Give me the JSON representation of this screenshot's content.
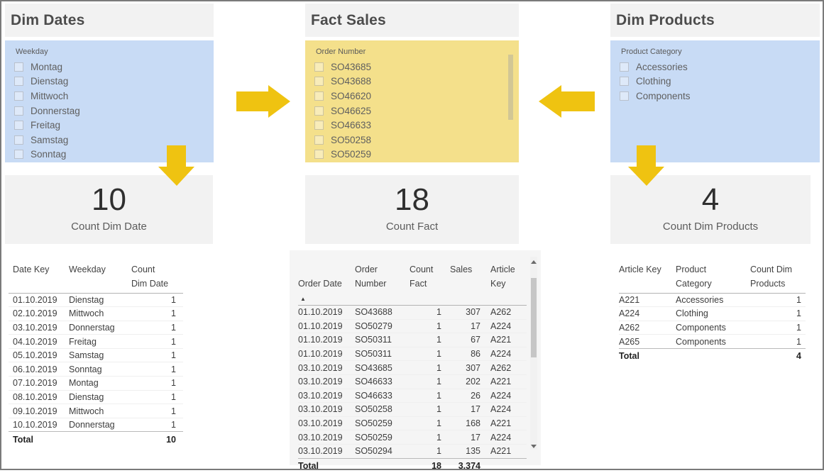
{
  "theme": {
    "frame_border": "#7a7a7a",
    "panel_gray": "#f2f2f2",
    "slicer_blue": "#c8dbf5",
    "slicer_yellow": "#f4e08b",
    "arrow_yellow": "#efc311",
    "title_color": "#4c4c4c",
    "slicer_text": "#5f5f5f",
    "table_text": "#3d3d3d",
    "card_value_color": "#2f2f2f",
    "card_label_color": "#5c5c5c",
    "mid_panel_bg": "#f5f5f5",
    "scroll_thumb": "#c6c6c6",
    "slicer_scroll_thumb": "#d2c795"
  },
  "columns": [
    {
      "title": "Dim Dates",
      "slicer": {
        "label": "Weekday",
        "items": [
          "Montag",
          "Dienstag",
          "Mittwoch",
          "Donnerstag",
          "Freitag",
          "Samstag",
          "Sonntag"
        ]
      },
      "card": {
        "value": "10",
        "label": "Count Dim Date"
      },
      "table": {
        "headers": [
          "Date Key",
          "Weekday",
          "Count\nDim Date"
        ],
        "rows": [
          [
            "01.10.2019",
            "Dienstag",
            "1"
          ],
          [
            "02.10.2019",
            "Mittwoch",
            "1"
          ],
          [
            "03.10.2019",
            "Donnerstag",
            "1"
          ],
          [
            "04.10.2019",
            "Freitag",
            "1"
          ],
          [
            "05.10.2019",
            "Samstag",
            "1"
          ],
          [
            "06.10.2019",
            "Sonntag",
            "1"
          ],
          [
            "07.10.2019",
            "Montag",
            "1"
          ],
          [
            "08.10.2019",
            "Dienstag",
            "1"
          ],
          [
            "09.10.2019",
            "Mittwoch",
            "1"
          ],
          [
            "10.10.2019",
            "Donnerstag",
            "1"
          ]
        ],
        "total": [
          "Total",
          "",
          "10"
        ]
      }
    },
    {
      "title": "Fact Sales",
      "slicer": {
        "label": "Order Number",
        "items": [
          "SO43685",
          "SO43688",
          "SO46620",
          "SO46625",
          "SO46633",
          "SO50258",
          "SO50259"
        ]
      },
      "card": {
        "value": "18",
        "label": "Count Fact"
      },
      "table": {
        "headers": [
          "Order Date",
          "Order\nNumber",
          "Count\nFact",
          "Sales",
          "Article\nKey"
        ],
        "sort_icon": "▲",
        "rows": [
          [
            "01.10.2019",
            "SO43688",
            "1",
            "307",
            "A262"
          ],
          [
            "01.10.2019",
            "SO50279",
            "1",
            "17",
            "A224"
          ],
          [
            "01.10.2019",
            "SO50311",
            "1",
            "67",
            "A221"
          ],
          [
            "01.10.2019",
            "SO50311",
            "1",
            "86",
            "A224"
          ],
          [
            "03.10.2019",
            "SO43685",
            "1",
            "307",
            "A262"
          ],
          [
            "03.10.2019",
            "SO46633",
            "1",
            "202",
            "A221"
          ],
          [
            "03.10.2019",
            "SO46633",
            "1",
            "26",
            "A224"
          ],
          [
            "03.10.2019",
            "SO50258",
            "1",
            "17",
            "A224"
          ],
          [
            "03.10.2019",
            "SO50259",
            "1",
            "168",
            "A221"
          ],
          [
            "03.10.2019",
            "SO50259",
            "1",
            "17",
            "A224"
          ],
          [
            "03.10.2019",
            "SO50294",
            "1",
            "135",
            "A221"
          ]
        ],
        "total": [
          "Total",
          "",
          "18",
          "3.374",
          ""
        ]
      }
    },
    {
      "title": "Dim Products",
      "slicer": {
        "label": "Product Category",
        "items": [
          "Accessories",
          "Clothing",
          "Components"
        ]
      },
      "card": {
        "value": "4",
        "label": "Count Dim Products"
      },
      "table": {
        "headers": [
          "Article Key",
          "Product\nCategory",
          "Count Dim\nProducts"
        ],
        "rows": [
          [
            "A221",
            "Accessories",
            "1"
          ],
          [
            "A224",
            "Clothing",
            "1"
          ],
          [
            "A262",
            "Components",
            "1"
          ],
          [
            "A265",
            "Components",
            "1"
          ]
        ],
        "total": [
          "Total",
          "",
          "4"
        ]
      }
    }
  ]
}
